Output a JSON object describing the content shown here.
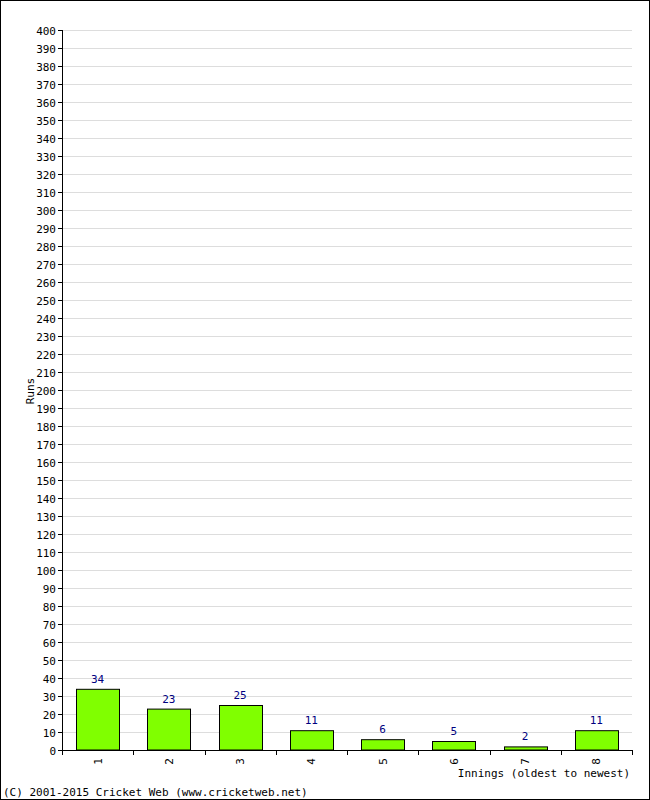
{
  "chart_data": {
    "type": "bar",
    "categories": [
      "1",
      "2",
      "3",
      "4",
      "5",
      "6",
      "7",
      "8"
    ],
    "values": [
      34,
      23,
      25,
      11,
      6,
      5,
      2,
      11
    ],
    "color": "#80ff00",
    "xlabel": "Innings (oldest to newest)",
    "ylabel": "Runs",
    "annotations": [
      "(C) 2001-2015 Cricket Web (www.cricketweb.net)"
    ],
    "ylim": [
      0,
      400
    ],
    "yticks": [
      0,
      10,
      20,
      30,
      40,
      50,
      60,
      70,
      80,
      90,
      100,
      110,
      120,
      130,
      140,
      150,
      160,
      170,
      180,
      190,
      200,
      210,
      220,
      230,
      240,
      250,
      260,
      270,
      280,
      290,
      300,
      310,
      320,
      330,
      340,
      350,
      360,
      370,
      380,
      390,
      400
    ],
    "grid": true,
    "data_labels": true
  }
}
